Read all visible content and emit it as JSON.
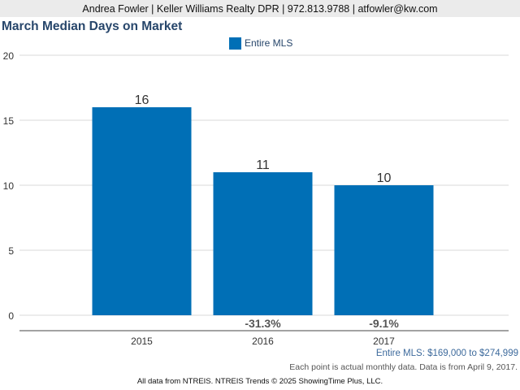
{
  "header": {
    "contact": "Andrea Fowler | Keller Williams Realty DPR | 972.813.9788 | atfowler@kw.com"
  },
  "chart_data": {
    "type": "bar",
    "title": "March Median Days on Market",
    "categories": [
      "2015",
      "2016",
      "2017"
    ],
    "series": [
      {
        "name": "Entire MLS",
        "color": "#006fb6",
        "values": [
          16,
          11,
          10
        ],
        "labels": [
          "16",
          "11",
          "10"
        ]
      }
    ],
    "change_labels": [
      "",
      "-31.3%",
      "-9.1%"
    ],
    "yticks": [
      "0",
      "5",
      "10",
      "15",
      "20"
    ],
    "ylim": [
      0,
      20
    ],
    "grid": true,
    "legend_position": "top-center",
    "xlabel": "",
    "ylabel": ""
  },
  "notes": {
    "price_range": "Entire MLS: $169,000 to $274,999",
    "data_note": "Each point is actual monthly data. Data is from April 9, 2017."
  },
  "footer": {
    "credit": "All data from NTREIS. NTREIS Trends © 2025 ShowingTime Plus, LLC."
  }
}
